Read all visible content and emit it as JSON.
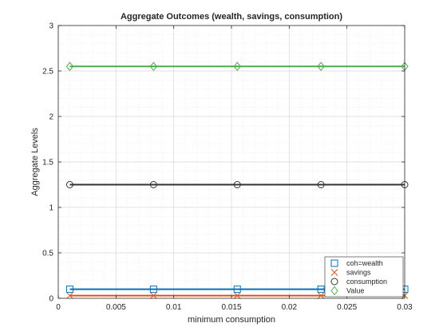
{
  "chart_data": {
    "type": "line",
    "title": "Aggregate Outcomes (wealth, savings, consumption)",
    "xlabel": "minimum consumption",
    "ylabel": "Aggregate Levels",
    "xlim": [
      0,
      0.03
    ],
    "ylim": [
      0,
      3
    ],
    "xticks": [
      0,
      0.005,
      0.01,
      0.015,
      0.02,
      0.025,
      0.03
    ],
    "xtick_labels": [
      "0",
      "0.005",
      "0.01",
      "0.015",
      "0.02",
      "0.025",
      "0.03"
    ],
    "yticks": [
      0,
      0.5,
      1,
      1.5,
      2,
      2.5,
      3
    ],
    "ytick_labels": [
      "0",
      "0.5",
      "1",
      "1.5",
      "2",
      "2.5",
      "3"
    ],
    "grid": true,
    "minor_grid": true,
    "legend_position": "bottom-right",
    "series": [
      {
        "name": "coh=wealth",
        "color": "#0072BD",
        "marker": "square",
        "x": [
          0.001,
          0.00825,
          0.0155,
          0.02275,
          0.03
        ],
        "y": [
          0.1,
          0.1,
          0.1,
          0.1,
          0.1
        ]
      },
      {
        "name": "savings",
        "color": "#D95319",
        "marker": "x",
        "x": [
          0.001,
          0.00825,
          0.0155,
          0.02275,
          0.03
        ],
        "y": [
          0.03,
          0.03,
          0.03,
          0.03,
          0.03
        ]
      },
      {
        "name": "consumption",
        "color": "#333333",
        "marker": "circle",
        "x": [
          0.001,
          0.00825,
          0.0155,
          0.02275,
          0.03
        ],
        "y": [
          1.25,
          1.25,
          1.25,
          1.25,
          1.25
        ]
      },
      {
        "name": "Value",
        "color": "#4DAA4D",
        "marker": "diamond",
        "x": [
          0.001,
          0.00825,
          0.0155,
          0.02275,
          0.03
        ],
        "y": [
          2.55,
          2.55,
          2.55,
          2.55,
          2.55
        ]
      }
    ]
  }
}
